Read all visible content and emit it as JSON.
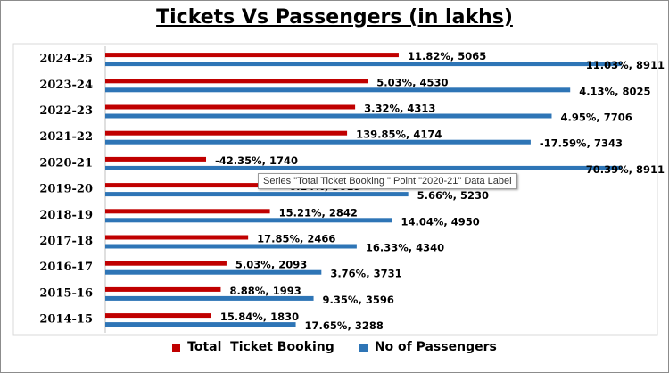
{
  "chart_data": {
    "type": "bar",
    "orientation": "horizontal",
    "title": "Tickets Vs Passengers (in lakhs)",
    "categories": [
      "2024-25",
      "2023-24",
      "2022-23",
      "2021-22",
      "2020-21",
      "2019-20",
      "2018-19",
      "2017-18",
      "2016-17",
      "2015-16",
      "2014-15"
    ],
    "series": [
      {
        "name": "Total  Ticket Booking",
        "color": "#c00000",
        "values": [
          5065,
          4530,
          4313,
          4174,
          1740,
          3019,
          2842,
          2466,
          2093,
          1993,
          1830
        ],
        "labels": [
          "11.82%, 5065",
          "5.03%, 4530",
          "3.32%, 4313",
          "139.85%, 4174",
          "-42.35%, 1740",
          "6.24%, 3019",
          "15.21%, 2842",
          "17.85%, 2466",
          "5.03%, 2093",
          "8.88%, 1993",
          "15.84%, 1830"
        ]
      },
      {
        "name": "No of Passengers",
        "color": "#2e75b6",
        "values": [
          8911,
          8025,
          7706,
          7343,
          8911,
          5230,
          4950,
          4340,
          3731,
          3596,
          3288
        ],
        "labels": [
          "11.03%, 8911",
          "4.13%, 8025",
          "4.95%, 7706",
          "-17.59%, 7343",
          "70.39%, 8911",
          "5.66%, 5230",
          "14.04%, 4950",
          "16.33%, 4340",
          "3.76%, 3731",
          "9.35%, 3596",
          "17.65%, 3288"
        ]
      }
    ],
    "xlim": [
      0,
      9500
    ],
    "grid": false,
    "legend": "bottom"
  },
  "tooltip": {
    "text": "Series \"Total  Ticket Booking \" Point \"2020-21\" Data Label"
  }
}
